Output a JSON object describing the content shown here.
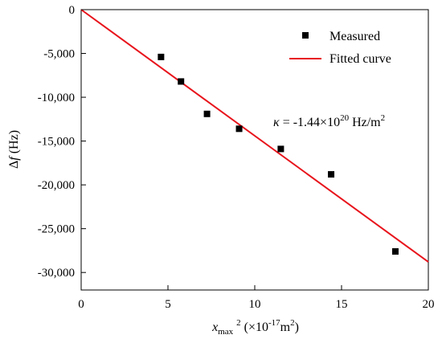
{
  "chart_data": {
    "type": "scatter",
    "x_axis": {
      "ticks": [
        0,
        5,
        10,
        15,
        20
      ],
      "tick_labels": [
        "0",
        "5",
        "10",
        "15",
        "20"
      ],
      "range": [
        0,
        20
      ],
      "label_var": "x",
      "label_sub": "max",
      "label_sup": "2",
      "label_unit_open": " (×10",
      "label_unit_exp": "-17",
      "label_unit_close": "m",
      "label_unit_exp2": "2",
      "label_unit_end": ")"
    },
    "y_axis": {
      "ticks": [
        0,
        -5000,
        -10000,
        -15000,
        -20000,
        -25000,
        -30000
      ],
      "tick_labels": [
        "0",
        "-5,000",
        "-10,000",
        "-15,000",
        "-20,000",
        "-25,000",
        "-30,000"
      ],
      "range": [
        -32000,
        0
      ],
      "label_delta": "Δ",
      "label_var": "f",
      "label_unit": " (Hz)"
    },
    "series": [
      {
        "name": "Measured",
        "kind": "scatter",
        "color": "#000000",
        "marker": "square",
        "points": [
          {
            "x": 4.6,
            "y": -5400
          },
          {
            "x": 5.75,
            "y": -8200
          },
          {
            "x": 7.25,
            "y": -11900
          },
          {
            "x": 9.1,
            "y": -13600
          },
          {
            "x": 11.5,
            "y": -15900
          },
          {
            "x": 14.4,
            "y": -18800
          },
          {
            "x": 18.1,
            "y": -27600
          }
        ]
      },
      {
        "name": "Fitted curve",
        "kind": "line",
        "color": "#e8141c",
        "points": [
          {
            "x": 0,
            "y": 0
          },
          {
            "x": 20,
            "y": -28800
          }
        ]
      }
    ],
    "legend": {
      "position": "top-right",
      "items": [
        {
          "label": "Measured",
          "marker": "square",
          "color": "#000000"
        },
        {
          "label": "Fitted curve",
          "marker": "line",
          "color": "#e8141c"
        }
      ]
    },
    "annotation": {
      "symbol": "κ",
      "text_mid": " = -1.44×10",
      "exponent": "20",
      "unit_base": " Hz/m",
      "unit_exp": "2"
    },
    "grid": false
  }
}
